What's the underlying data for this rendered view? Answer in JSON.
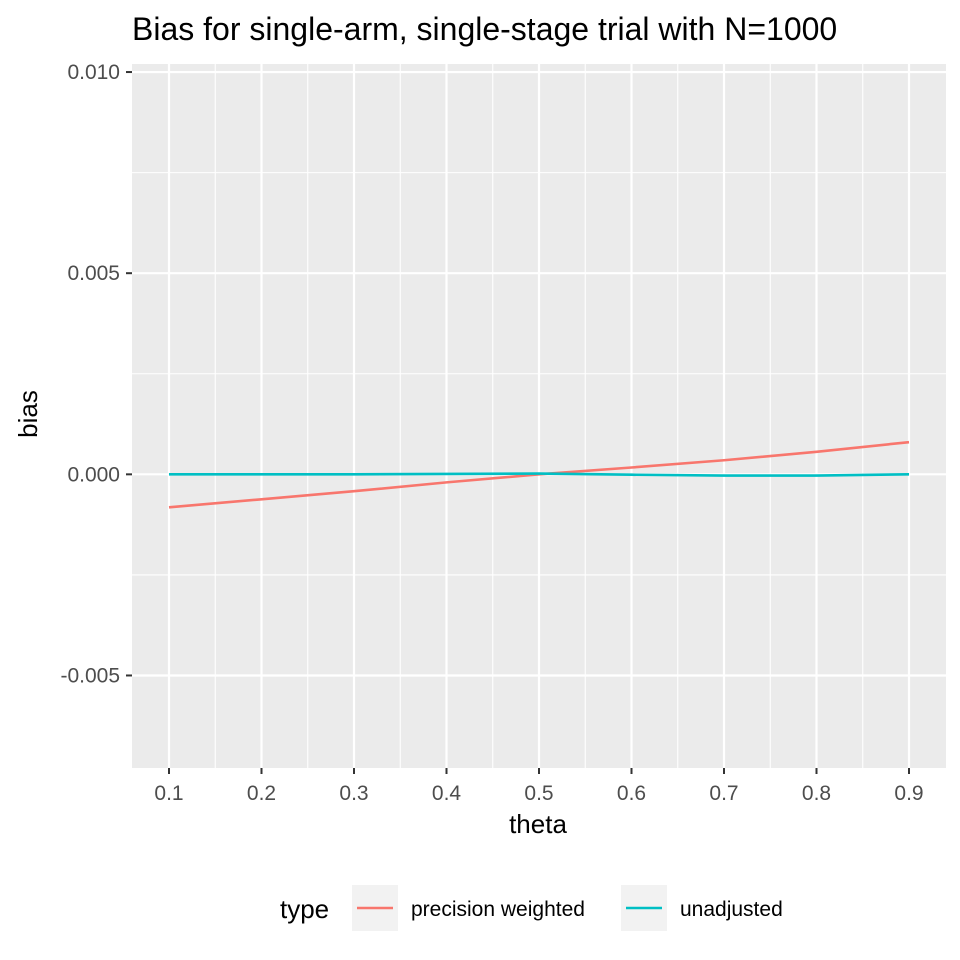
{
  "chart_data": {
    "type": "line",
    "title": "Bias for single-arm, single-stage trial with N=1000",
    "xlabel": "theta",
    "ylabel": "bias",
    "x": [
      0.1,
      0.2,
      0.3,
      0.4,
      0.5,
      0.6,
      0.7,
      0.8,
      0.9
    ],
    "xlim": [
      0.06,
      0.94
    ],
    "ylim": [
      -0.0073,
      0.0102
    ],
    "x_ticks": [
      "0.1",
      "0.2",
      "0.3",
      "0.4",
      "0.5",
      "0.6",
      "0.7",
      "0.8",
      "0.9"
    ],
    "y_ticks": [
      "-0.005",
      "0.000",
      "0.005",
      "0.010"
    ],
    "grid": true,
    "legend": {
      "title": "type",
      "position": "bottom"
    },
    "series": [
      {
        "name": "precision weighted",
        "color": "#F8766D",
        "values": [
          -0.00082,
          -0.00062,
          -0.00042,
          -0.0002,
          0.0,
          0.00017,
          0.00035,
          0.00056,
          0.0008
        ]
      },
      {
        "name": "unadjusted",
        "color": "#00BFC4",
        "values": [
          0.0,
          0.0,
          0.0,
          1e-05,
          2e-05,
          -1e-05,
          -3e-05,
          -3e-05,
          0.0
        ]
      }
    ]
  }
}
